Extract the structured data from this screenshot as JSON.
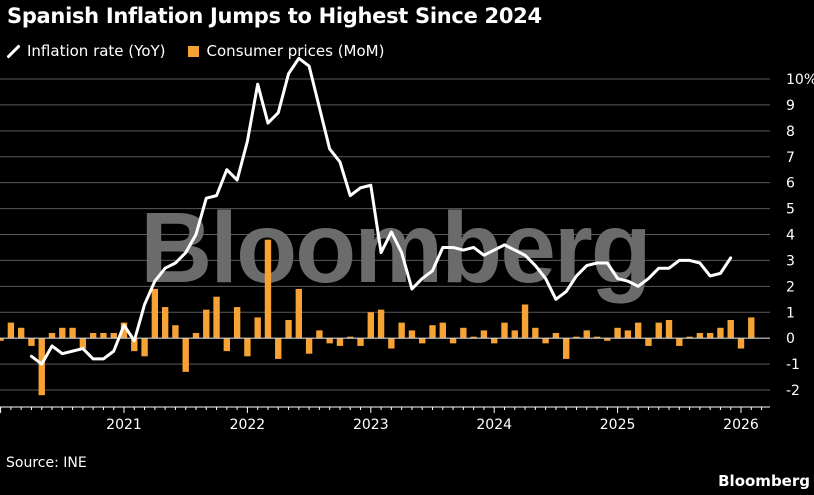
{
  "header": {
    "title": "Spanish Inflation Jumps to Highest Since 2024"
  },
  "legend": {
    "line_label": "Inflation rate (YoY)",
    "bar_label": "Consumer prices (MoM)"
  },
  "footer": {
    "source": "Source: INE",
    "brand": "Bloomberg"
  },
  "watermark": "Bloomberg",
  "colors": {
    "background": "#000000",
    "line": "#ffffff",
    "bar": "#f7a235",
    "grid": "#5a5a5a",
    "watermark": "#6b6b6b"
  },
  "chart_data": {
    "type": "bar+line",
    "x_start": "2020-04",
    "x_end": "2026-03",
    "ylim": [
      -2.6,
      10.2
    ],
    "yticks": [
      -2,
      -1,
      0,
      1,
      2,
      3,
      4,
      5,
      6,
      7,
      8,
      9,
      10
    ],
    "ytick_labels": [
      "-2",
      "-1",
      "0",
      "1",
      "2",
      "3",
      "4",
      "5",
      "6",
      "7",
      "8",
      "9",
      "10%"
    ],
    "xticks": [
      {
        "date": "2021-01",
        "label": "2021"
      },
      {
        "date": "2022-01",
        "label": "2022"
      },
      {
        "date": "2023-01",
        "label": "2023"
      },
      {
        "date": "2024-01",
        "label": "2024"
      },
      {
        "date": "2025-01",
        "label": "2025"
      },
      {
        "date": "2026-01",
        "label": "2026"
      }
    ],
    "grid": true,
    "legend_position": "top-left",
    "series": [
      {
        "name": "Inflation rate (YoY)",
        "type": "line",
        "values": [
          -0.7,
          -1.0,
          -0.3,
          -0.6,
          -0.5,
          -0.4,
          -0.8,
          -0.8,
          -0.5,
          0.5,
          -0.1,
          1.3,
          2.2,
          2.7,
          2.9,
          3.3,
          4.0,
          5.4,
          5.5,
          6.5,
          6.1,
          7.6,
          9.8,
          8.3,
          8.7,
          10.2,
          10.8,
          10.5,
          8.9,
          7.3,
          6.8,
          5.5,
          5.8,
          5.9,
          3.3,
          4.1,
          3.3,
          1.9,
          2.3,
          2.6,
          3.5,
          3.5,
          3.4,
          3.5,
          3.2,
          3.4,
          3.6,
          3.4,
          3.2,
          2.8,
          2.3,
          1.5,
          1.8,
          2.4,
          2.8,
          2.9,
          2.9,
          2.3,
          2.2,
          2.0,
          2.3,
          2.7,
          2.7,
          3.0,
          3.0,
          2.9,
          2.4,
          2.5,
          3.1
        ],
        "x_start": "2020-04"
      },
      {
        "name": "Consumer prices (MoM)",
        "type": "bar",
        "values": [
          -0.1,
          0.6,
          0.4,
          -0.3,
          -2.2,
          0.2,
          0.4,
          0.4,
          -0.4,
          0.2,
          0.2,
          0.2,
          0.6,
          -0.5,
          -0.7,
          1.9,
          1.2,
          0.5,
          -1.3,
          0.2,
          1.1,
          1.6,
          -0.5,
          1.2,
          -0.7,
          0.8,
          3.8,
          -0.8,
          0.7,
          1.9,
          -0.6,
          0.3,
          -0.2,
          -0.3,
          0.0,
          -0.3,
          1.0,
          1.1,
          -0.4,
          0.6,
          0.3,
          -0.2,
          0.5,
          0.6,
          -0.2,
          0.4,
          0.0,
          0.3,
          -0.2,
          0.6,
          0.3,
          1.3,
          0.4,
          -0.2,
          0.2,
          -0.8,
          0.0,
          0.3,
          0.0,
          -0.1,
          0.4,
          0.3,
          0.6,
          -0.3,
          0.6,
          0.7,
          -0.3,
          0.0,
          0.2,
          0.2,
          0.4,
          0.7,
          -0.4,
          0.8
        ],
        "x_start": "2020-01"
      }
    ]
  }
}
